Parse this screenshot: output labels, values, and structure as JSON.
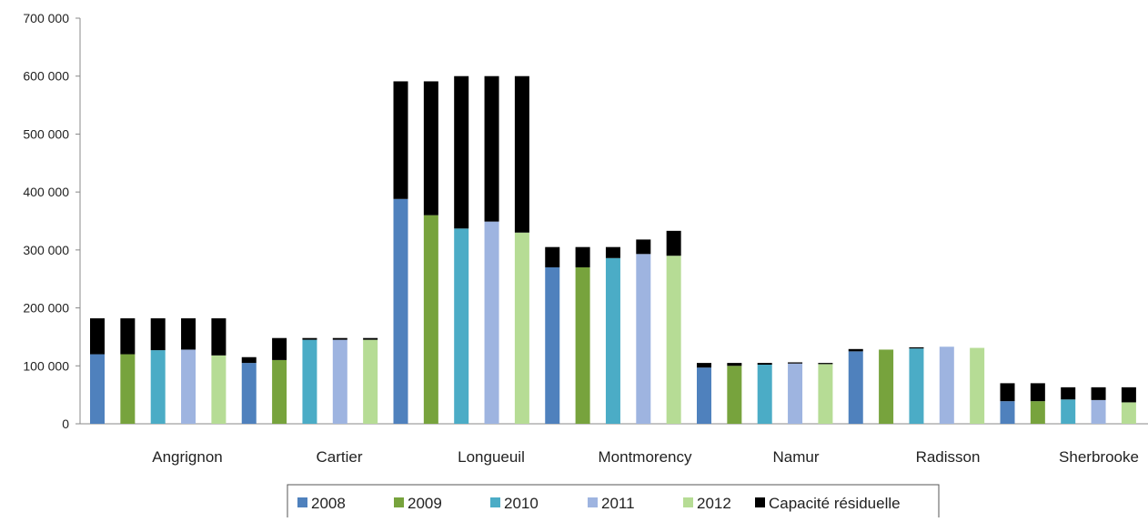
{
  "chart_data": {
    "type": "bar",
    "stacked": true,
    "title": "",
    "xlabel": "",
    "ylabel": "",
    "ylim": [
      0,
      700000
    ],
    "y_ticks": [
      "0",
      "100 000",
      "200 000",
      "300 000",
      "400 000",
      "500 000",
      "600 000",
      "700 000"
    ],
    "categories": [
      "Angrignon",
      "Cartier",
      "Longueuil",
      "Montmorency",
      "Namur",
      "Radisson",
      "Sherbrooke"
    ],
    "year_series": [
      {
        "name": "2008",
        "color": "#4f81bd"
      },
      {
        "name": "2009",
        "color": "#77a33d"
      },
      {
        "name": "2010",
        "color": "#4bacc6"
      },
      {
        "name": "2011",
        "color": "#9eb4e0"
      },
      {
        "name": "2012",
        "color": "#b6dc95"
      }
    ],
    "residual_series": {
      "name": "Capacité résiduelle",
      "color": "#000000"
    },
    "bars": [
      {
        "category": "Angrignon",
        "year": "2008",
        "value": 120000,
        "residual": 62000
      },
      {
        "category": "Angrignon",
        "year": "2009",
        "value": 120000,
        "residual": 62000
      },
      {
        "category": "Angrignon",
        "year": "2010",
        "value": 127000,
        "residual": 55000
      },
      {
        "category": "Angrignon",
        "year": "2011",
        "value": 128000,
        "residual": 54000
      },
      {
        "category": "Angrignon",
        "year": "2012",
        "value": 118000,
        "residual": 64000
      },
      {
        "category": "Cartier",
        "year": "2008",
        "value": 105000,
        "residual": 10000
      },
      {
        "category": "Cartier",
        "year": "2009",
        "value": 110000,
        "residual": 38000
      },
      {
        "category": "Cartier",
        "year": "2010",
        "value": 145000,
        "residual": 3000
      },
      {
        "category": "Cartier",
        "year": "2011",
        "value": 145000,
        "residual": 3000
      },
      {
        "category": "Cartier",
        "year": "2012",
        "value": 145000,
        "residual": 3000
      },
      {
        "category": "Longueuil",
        "year": "2008",
        "value": 388000,
        "residual": 203000
      },
      {
        "category": "Longueuil",
        "year": "2009",
        "value": 360000,
        "residual": 231000
      },
      {
        "category": "Longueuil",
        "year": "2010",
        "value": 337000,
        "residual": 263000
      },
      {
        "category": "Longueuil",
        "year": "2011",
        "value": 349000,
        "residual": 251000
      },
      {
        "category": "Longueuil",
        "year": "2012",
        "value": 330000,
        "residual": 270000
      },
      {
        "category": "Montmorency",
        "year": "2008",
        "value": 270000,
        "residual": 35000
      },
      {
        "category": "Montmorency",
        "year": "2009",
        "value": 270000,
        "residual": 35000
      },
      {
        "category": "Montmorency",
        "year": "2010",
        "value": 286000,
        "residual": 19000
      },
      {
        "category": "Montmorency",
        "year": "2011",
        "value": 293000,
        "residual": 25000
      },
      {
        "category": "Montmorency",
        "year": "2012",
        "value": 290000,
        "residual": 43000
      },
      {
        "category": "Namur",
        "year": "2008",
        "value": 97000,
        "residual": 8000
      },
      {
        "category": "Namur",
        "year": "2009",
        "value": 100000,
        "residual": 5000
      },
      {
        "category": "Namur",
        "year": "2010",
        "value": 102000,
        "residual": 3000
      },
      {
        "category": "Namur",
        "year": "2011",
        "value": 104000,
        "residual": 2000
      },
      {
        "category": "Namur",
        "year": "2012",
        "value": 103000,
        "residual": 2000
      },
      {
        "category": "Radisson",
        "year": "2008",
        "value": 125000,
        "residual": 4000
      },
      {
        "category": "Radisson",
        "year": "2009",
        "value": 128000,
        "residual": 0
      },
      {
        "category": "Radisson",
        "year": "2010",
        "value": 130000,
        "residual": 2000
      },
      {
        "category": "Radisson",
        "year": "2011",
        "value": 133000,
        "residual": 0
      },
      {
        "category": "Radisson",
        "year": "2012",
        "value": 131000,
        "residual": 0
      },
      {
        "category": "Sherbrooke",
        "year": "2008",
        "value": 39000,
        "residual": 31000
      },
      {
        "category": "Sherbrooke",
        "year": "2009",
        "value": 39000,
        "residual": 31000
      },
      {
        "category": "Sherbrooke",
        "year": "2010",
        "value": 42000,
        "residual": 21000
      },
      {
        "category": "Sherbrooke",
        "year": "2011",
        "value": 41000,
        "residual": 22000
      },
      {
        "category": "Sherbrooke",
        "year": "2012",
        "value": 37000,
        "residual": 26000
      }
    ],
    "legend": {
      "position": "bottom",
      "entries": [
        "2008",
        "2009",
        "2010",
        "2011",
        "2012",
        "Capacité résiduelle"
      ]
    },
    "grid": false
  }
}
